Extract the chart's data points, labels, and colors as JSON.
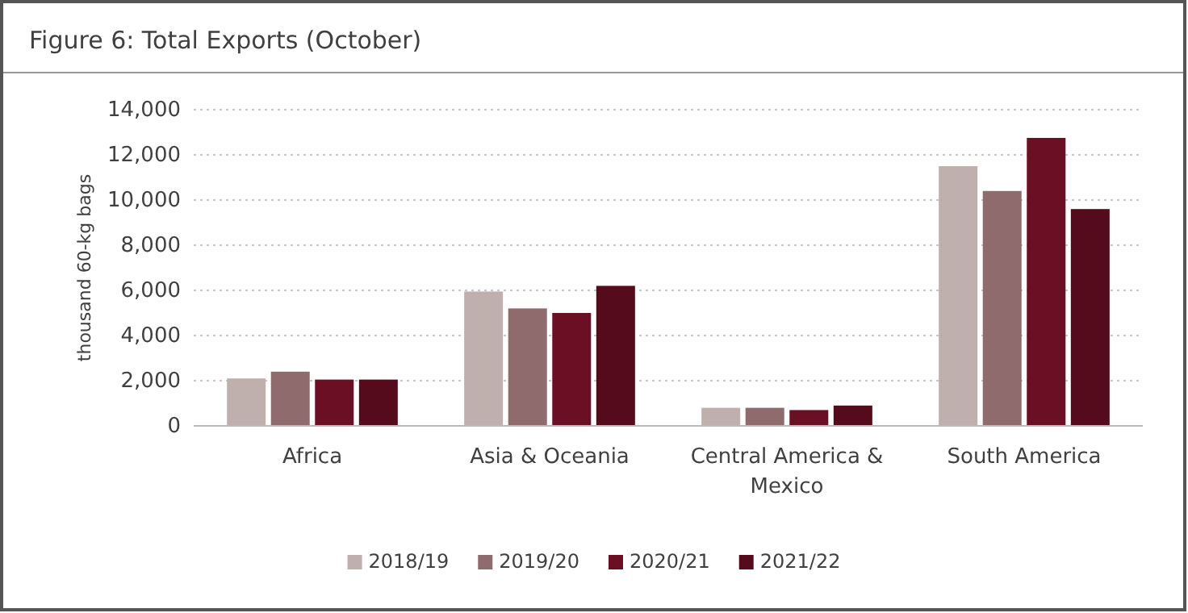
{
  "chart_data": {
    "type": "bar",
    "title": "Figure 6: Total Exports (October)",
    "ylabel": "thousand 60-kg bags",
    "categories": [
      "Africa",
      "Asia & Oceania",
      "Central America & Mexico",
      "South America"
    ],
    "series": [
      {
        "name": "2018/19",
        "color": "#bfb0ae",
        "values": [
          2100,
          5950,
          800,
          11500
        ]
      },
      {
        "name": "2019/20",
        "color": "#8f6b6d",
        "values": [
          2400,
          5200,
          800,
          10400
        ]
      },
      {
        "name": "2020/21",
        "color": "#6a0f24",
        "values": [
          2050,
          5000,
          700,
          12750
        ]
      },
      {
        "name": "2021/22",
        "color": "#560b1c",
        "values": [
          2050,
          6200,
          900,
          9600
        ]
      }
    ],
    "ylim": [
      0,
      14000
    ],
    "yticks": [
      {
        "value": 0,
        "label": "0"
      },
      {
        "value": 2000,
        "label": "2,000"
      },
      {
        "value": 4000,
        "label": "4,000"
      },
      {
        "value": 6000,
        "label": "6,000"
      },
      {
        "value": 8000,
        "label": "8,000"
      },
      {
        "value": 10000,
        "label": "10,000"
      },
      {
        "value": 12000,
        "label": "12,000"
      },
      {
        "value": 14000,
        "label": "14,000"
      }
    ],
    "grid": "y",
    "legend": "bottom"
  }
}
